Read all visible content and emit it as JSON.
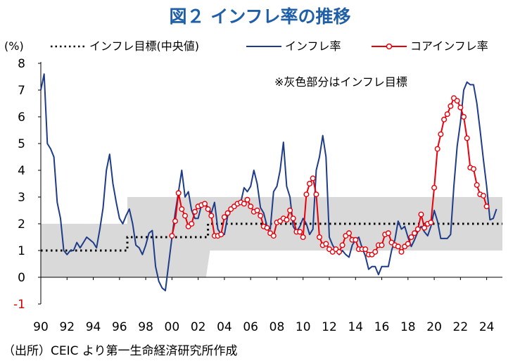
{
  "title": "図２ インフレ率の推移",
  "source": "（出所）CEIC より第一生命経済研究所作成",
  "chart_data": {
    "type": "line",
    "unit_label": "(%)",
    "annotation": "※灰色部分はインフレ目標",
    "ylim": [
      -1,
      8
    ],
    "y_ticks": [
      8,
      7,
      6,
      5,
      4,
      3,
      2,
      1,
      0,
      -1
    ],
    "xlim": [
      1990,
      2025.2
    ],
    "x_ticks": [
      {
        "year": 1990,
        "label": "90"
      },
      {
        "year": 1992,
        "label": "92"
      },
      {
        "year": 1994,
        "label": "94"
      },
      {
        "year": 1996,
        "label": "96"
      },
      {
        "year": 1998,
        "label": "98"
      },
      {
        "year": 2000,
        "label": "00"
      },
      {
        "year": 2002,
        "label": "02"
      },
      {
        "year": 2004,
        "label": "04"
      },
      {
        "year": 2006,
        "label": "06"
      },
      {
        "year": 2008,
        "label": "08"
      },
      {
        "year": 2010,
        "label": "10"
      },
      {
        "year": 2012,
        "label": "12"
      },
      {
        "year": 2014,
        "label": "14"
      },
      {
        "year": 2016,
        "label": "16"
      },
      {
        "year": 2018,
        "label": "18"
      },
      {
        "year": 2020,
        "label": "20"
      },
      {
        "year": 2022,
        "label": "22"
      },
      {
        "year": 2024,
        "label": "24"
      }
    ],
    "colors": {
      "headline": "#1f3c88",
      "core": "#e8000b",
      "target": "#000000",
      "band": "#d9d9d9"
    },
    "target_band": {
      "upper": [
        [
          1990,
          2
        ],
        [
          1996.6,
          2
        ],
        [
          1996.6,
          3
        ],
        [
          2025.2,
          3
        ]
      ],
      "lower": [
        [
          1990,
          0
        ],
        [
          2002.6,
          0
        ],
        [
          2002.9,
          1
        ],
        [
          2025.2,
          1
        ]
      ]
    },
    "series": [
      {
        "name": "インフレ目標(中央値)",
        "style": "dotted",
        "points": [
          [
            1990,
            1
          ],
          [
            1996.6,
            1
          ],
          [
            1996.6,
            1.5
          ],
          [
            2002.75,
            1.5
          ],
          [
            2002.75,
            2
          ],
          [
            2025.2,
            2
          ]
        ]
      },
      {
        "name": "インフレ率",
        "style": "line",
        "points": [
          [
            1990.0,
            7.0
          ],
          [
            1990.25,
            7.6
          ],
          [
            1990.5,
            5.0
          ],
          [
            1990.75,
            4.8
          ],
          [
            1991.0,
            4.5
          ],
          [
            1991.25,
            2.8
          ],
          [
            1991.5,
            2.2
          ],
          [
            1991.75,
            1.0
          ],
          [
            1992.0,
            0.85
          ],
          [
            1992.25,
            1.0
          ],
          [
            1992.5,
            1.0
          ],
          [
            1992.75,
            1.3
          ],
          [
            1993.0,
            1.1
          ],
          [
            1993.25,
            1.3
          ],
          [
            1993.5,
            1.5
          ],
          [
            1993.75,
            1.4
          ],
          [
            1994.0,
            1.3
          ],
          [
            1994.25,
            1.1
          ],
          [
            1994.5,
            1.8
          ],
          [
            1994.75,
            2.6
          ],
          [
            1995.0,
            4.0
          ],
          [
            1995.25,
            4.6
          ],
          [
            1995.5,
            3.5
          ],
          [
            1995.75,
            2.8
          ],
          [
            1996.0,
            2.2
          ],
          [
            1996.25,
            2.0
          ],
          [
            1996.5,
            2.3
          ],
          [
            1996.75,
            2.55
          ],
          [
            1997.0,
            2.0
          ],
          [
            1997.25,
            1.2
          ],
          [
            1997.5,
            1.1
          ],
          [
            1997.75,
            0.85
          ],
          [
            1998.0,
            1.2
          ],
          [
            1998.25,
            1.65
          ],
          [
            1998.5,
            1.75
          ],
          [
            1998.75,
            0.4
          ],
          [
            1999.0,
            -0.15
          ],
          [
            1999.25,
            -0.4
          ],
          [
            1999.5,
            -0.5
          ],
          [
            1999.75,
            0.5
          ],
          [
            2000.0,
            1.5
          ],
          [
            2000.25,
            2.4
          ],
          [
            2000.5,
            3.2
          ],
          [
            2000.75,
            4.0
          ],
          [
            2001.0,
            3.0
          ],
          [
            2001.25,
            3.2
          ],
          [
            2001.5,
            2.5
          ],
          [
            2001.75,
            2.2
          ],
          [
            2002.0,
            2.2
          ],
          [
            2002.25,
            2.7
          ],
          [
            2002.5,
            2.8
          ],
          [
            2002.75,
            2.6
          ],
          [
            2003.0,
            2.4
          ],
          [
            2003.25,
            2.8
          ],
          [
            2003.5,
            1.8
          ],
          [
            2003.75,
            1.6
          ],
          [
            2004.0,
            1.6
          ],
          [
            2004.25,
            2.3
          ],
          [
            2004.5,
            2.5
          ],
          [
            2004.75,
            2.6
          ],
          [
            2005.0,
            2.7
          ],
          [
            2005.25,
            2.8
          ],
          [
            2005.5,
            3.35
          ],
          [
            2005.75,
            3.2
          ],
          [
            2006.0,
            3.4
          ],
          [
            2006.25,
            4.0
          ],
          [
            2006.5,
            3.5
          ],
          [
            2006.75,
            2.6
          ],
          [
            2007.0,
            2.4
          ],
          [
            2007.25,
            1.9
          ],
          [
            2007.5,
            1.8
          ],
          [
            2007.75,
            3.2
          ],
          [
            2008.0,
            3.4
          ],
          [
            2008.25,
            4.0
          ],
          [
            2008.5,
            5.05
          ],
          [
            2008.75,
            3.4
          ],
          [
            2009.0,
            3.0
          ],
          [
            2009.25,
            1.9
          ],
          [
            2009.5,
            1.7
          ],
          [
            2009.75,
            1.9
          ],
          [
            2010.0,
            2.2
          ],
          [
            2010.25,
            2.0
          ],
          [
            2010.5,
            1.6
          ],
          [
            2010.75,
            1.8
          ],
          [
            2011.0,
            4.0
          ],
          [
            2011.25,
            4.5
          ],
          [
            2011.5,
            5.3
          ],
          [
            2011.75,
            4.5
          ],
          [
            2012.0,
            1.5
          ],
          [
            2012.25,
            1.2
          ],
          [
            2012.5,
            1.0
          ],
          [
            2012.75,
            0.85
          ],
          [
            2013.0,
            1.0
          ],
          [
            2013.25,
            0.85
          ],
          [
            2013.5,
            0.75
          ],
          [
            2013.75,
            1.2
          ],
          [
            2014.0,
            1.4
          ],
          [
            2014.25,
            1.5
          ],
          [
            2014.5,
            1.1
          ],
          [
            2014.75,
            0.8
          ],
          [
            2015.0,
            0.3
          ],
          [
            2015.25,
            0.4
          ],
          [
            2015.5,
            0.4
          ],
          [
            2015.75,
            0.1
          ],
          [
            2016.0,
            0.4
          ],
          [
            2016.25,
            0.4
          ],
          [
            2016.5,
            0.4
          ],
          [
            2016.75,
            1.0
          ],
          [
            2017.0,
            1.4
          ],
          [
            2017.25,
            2.1
          ],
          [
            2017.5,
            1.8
          ],
          [
            2017.75,
            1.9
          ],
          [
            2018.0,
            1.5
          ],
          [
            2018.25,
            1.15
          ],
          [
            2018.5,
            1.4
          ],
          [
            2018.75,
            1.7
          ],
          [
            2019.0,
            1.9
          ],
          [
            2019.25,
            1.7
          ],
          [
            2019.5,
            1.55
          ],
          [
            2019.75,
            1.9
          ],
          [
            2020.0,
            2.5
          ],
          [
            2020.25,
            2.1
          ],
          [
            2020.5,
            1.45
          ],
          [
            2020.75,
            1.45
          ],
          [
            2021.0,
            1.45
          ],
          [
            2021.25,
            1.6
          ],
          [
            2021.5,
            3.4
          ],
          [
            2021.75,
            4.9
          ],
          [
            2022.0,
            5.8
          ],
          [
            2022.25,
            7.0
          ],
          [
            2022.5,
            7.3
          ],
          [
            2022.75,
            7.2
          ],
          [
            2023.0,
            7.2
          ],
          [
            2023.25,
            6.5
          ],
          [
            2023.5,
            5.5
          ],
          [
            2023.75,
            4.4
          ],
          [
            2024.0,
            3.4
          ],
          [
            2024.25,
            2.15
          ],
          [
            2024.5,
            2.2
          ],
          [
            2024.75,
            2.55
          ]
        ]
      },
      {
        "name": "コアインフレ率",
        "style": "line-marker",
        "points": [
          [
            2000.0,
            1.55
          ],
          [
            2000.25,
            2.1
          ],
          [
            2000.5,
            3.15
          ],
          [
            2000.75,
            2.55
          ],
          [
            2001.0,
            2.3
          ],
          [
            2001.25,
            1.9
          ],
          [
            2001.5,
            2.0
          ],
          [
            2001.75,
            2.45
          ],
          [
            2002.0,
            2.65
          ],
          [
            2002.25,
            2.7
          ],
          [
            2002.5,
            2.75
          ],
          [
            2002.75,
            2.55
          ],
          [
            2003.0,
            2.3
          ],
          [
            2003.25,
            1.55
          ],
          [
            2003.5,
            1.55
          ],
          [
            2003.75,
            1.6
          ],
          [
            2004.0,
            2.25
          ],
          [
            2004.25,
            2.4
          ],
          [
            2004.5,
            2.55
          ],
          [
            2004.75,
            2.65
          ],
          [
            2005.0,
            2.75
          ],
          [
            2005.25,
            2.8
          ],
          [
            2005.5,
            2.75
          ],
          [
            2005.75,
            2.9
          ],
          [
            2006.0,
            2.65
          ],
          [
            2006.25,
            2.45
          ],
          [
            2006.5,
            2.5
          ],
          [
            2006.75,
            2.3
          ],
          [
            2007.0,
            1.9
          ],
          [
            2007.25,
            1.85
          ],
          [
            2007.5,
            1.65
          ],
          [
            2007.75,
            1.55
          ],
          [
            2008.0,
            2.05
          ],
          [
            2008.25,
            2.1
          ],
          [
            2008.5,
            2.2
          ],
          [
            2008.75,
            2.15
          ],
          [
            2009.0,
            2.5
          ],
          [
            2009.25,
            2.2
          ],
          [
            2009.5,
            1.7
          ],
          [
            2009.75,
            1.7
          ],
          [
            2010.0,
            1.5
          ],
          [
            2010.25,
            3.1
          ],
          [
            2010.5,
            3.5
          ],
          [
            2010.75,
            3.7
          ],
          [
            2011.0,
            3.1
          ],
          [
            2011.25,
            1.5
          ],
          [
            2011.5,
            1.2
          ],
          [
            2011.75,
            1.25
          ],
          [
            2012.0,
            1.05
          ],
          [
            2012.25,
            0.95
          ],
          [
            2012.5,
            1.05
          ],
          [
            2012.75,
            0.95
          ],
          [
            2013.0,
            1.2
          ],
          [
            2013.25,
            1.55
          ],
          [
            2013.5,
            1.65
          ],
          [
            2013.75,
            1.4
          ],
          [
            2014.0,
            1.4
          ],
          [
            2014.25,
            1.05
          ],
          [
            2014.5,
            1.05
          ],
          [
            2014.75,
            1.05
          ],
          [
            2015.0,
            0.85
          ],
          [
            2015.25,
            0.85
          ],
          [
            2015.5,
            0.95
          ],
          [
            2015.75,
            1.2
          ],
          [
            2016.0,
            1.2
          ],
          [
            2016.25,
            1.6
          ],
          [
            2016.5,
            1.65
          ],
          [
            2016.75,
            1.3
          ],
          [
            2017.0,
            1.2
          ],
          [
            2017.25,
            1.15
          ],
          [
            2017.5,
            0.95
          ],
          [
            2017.75,
            1.15
          ],
          [
            2018.0,
            1.25
          ],
          [
            2018.25,
            1.5
          ],
          [
            2018.5,
            1.65
          ],
          [
            2018.75,
            1.8
          ],
          [
            2019.0,
            2.35
          ],
          [
            2019.25,
            1.85
          ],
          [
            2019.5,
            2.0
          ],
          [
            2019.75,
            2.05
          ],
          [
            2020.0,
            3.35
          ],
          [
            2020.25,
            4.8
          ],
          [
            2020.5,
            5.35
          ],
          [
            2020.75,
            5.9
          ],
          [
            2021.0,
            6.1
          ],
          [
            2021.25,
            6.4
          ],
          [
            2021.5,
            6.7
          ],
          [
            2021.75,
            6.6
          ],
          [
            2022.0,
            6.35
          ],
          [
            2022.25,
            6.0
          ],
          [
            2022.5,
            5.2
          ],
          [
            2022.75,
            4.1
          ],
          [
            2023.0,
            4.05
          ],
          [
            2023.25,
            3.45
          ],
          [
            2023.5,
            3.1
          ],
          [
            2023.75,
            3.05
          ],
          [
            2024.0,
            2.65
          ]
        ]
      }
    ]
  }
}
